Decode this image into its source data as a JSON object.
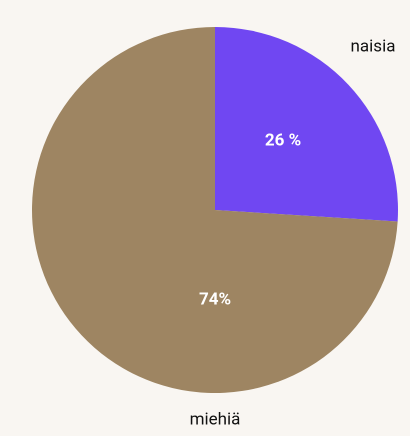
{
  "chart_data": {
    "type": "pie",
    "categories": [
      "naisia",
      "miehiä"
    ],
    "values": [
      26,
      74
    ],
    "value_labels": [
      "26 %",
      "74%"
    ],
    "colors": [
      "#7047f2",
      "#9e8562"
    ]
  }
}
